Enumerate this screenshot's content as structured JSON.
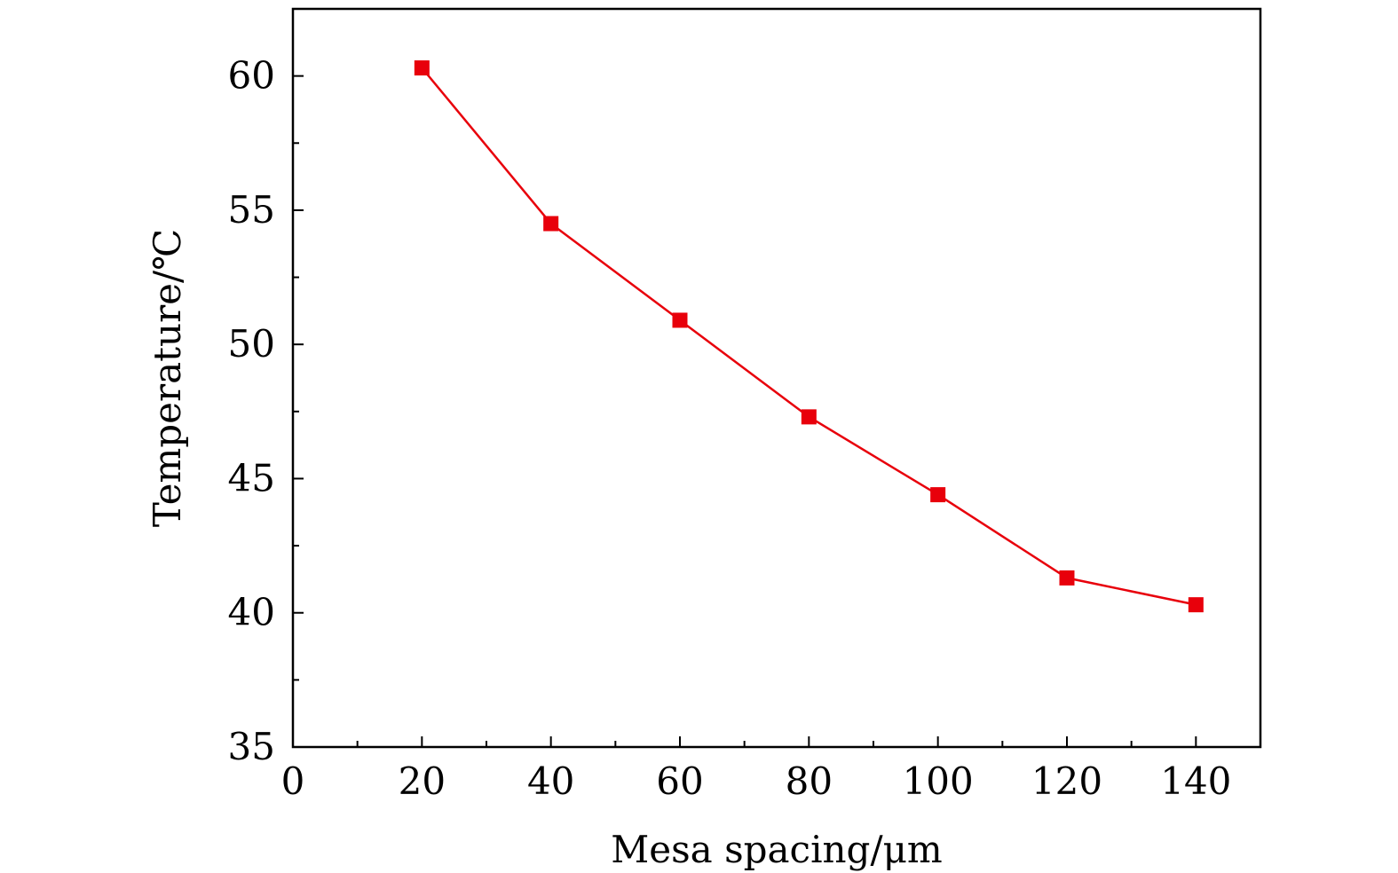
{
  "chart_data": {
    "type": "line",
    "title": "",
    "xlabel": "Mesa spacing/μm",
    "ylabel": "Temperature/℃",
    "xlim": [
      0,
      150
    ],
    "ylim": [
      35,
      62.5
    ],
    "x_major_ticks": [
      0,
      20,
      40,
      60,
      80,
      100,
      120,
      140
    ],
    "x_tick_labels": [
      "0",
      "20",
      "40",
      "60",
      "80",
      "100",
      "120",
      "140"
    ],
    "x_minor_ticks": [
      10,
      30,
      50,
      70,
      90,
      110,
      130,
      150
    ],
    "y_major_ticks": [
      35,
      40,
      45,
      50,
      55,
      60
    ],
    "y_tick_labels": [
      "35",
      "40",
      "45",
      "50",
      "55",
      "60"
    ],
    "y_minor_ticks": [
      37.5,
      42.5,
      47.5,
      52.5,
      57.5
    ],
    "grid": false,
    "legend": "none",
    "series": [
      {
        "color": "#e8000b",
        "marker": "square",
        "x": [
          20,
          40,
          60,
          80,
          100,
          120,
          140
        ],
        "y": [
          60.3,
          54.5,
          50.9,
          47.3,
          44.4,
          41.3,
          40.3
        ]
      }
    ]
  }
}
